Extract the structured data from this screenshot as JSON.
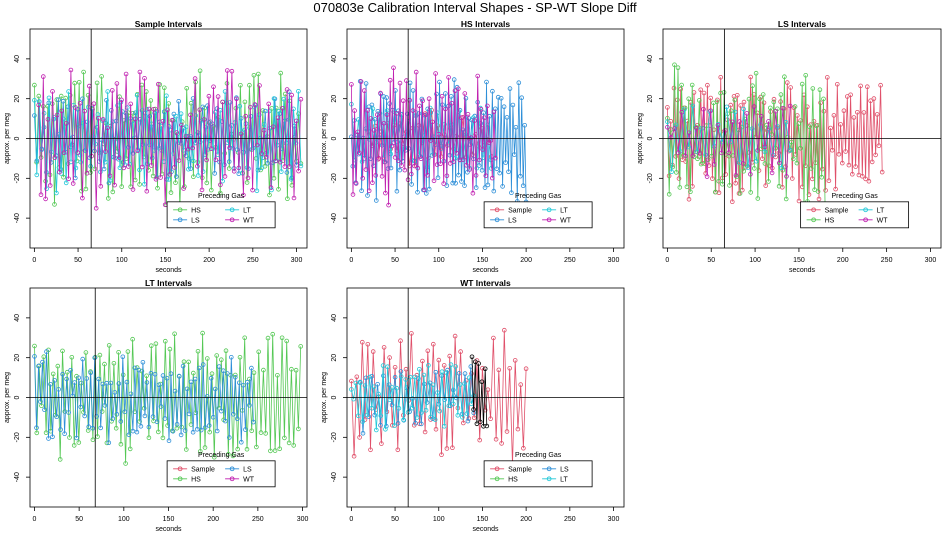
{
  "page_title": "070803e   Calibration Interval Shapes - SP-WT Slope Diff",
  "colors": {
    "Sample": "#e0506a",
    "HS": "#55c855",
    "LS": "#2e8fd8",
    "LT": "#22c8d8",
    "WT": "#c020b0",
    "ref": "#000000"
  },
  "chart_data": [
    {
      "type": "line",
      "title": "Sample Intervals",
      "xlabel": "seconds",
      "ylabel": "approx. per meg",
      "xlim": [
        -5,
        312
      ],
      "ylim": [
        -55,
        55
      ],
      "xticks": [
        0,
        50,
        100,
        150,
        200,
        250,
        300
      ],
      "yticks": [
        -40,
        -20,
        0,
        20,
        40
      ],
      "vline": 65,
      "hline": 0,
      "legend": {
        "title": "Preceding Gas",
        "entries": [
          "HS",
          "LT",
          "LS",
          "WT"
        ]
      },
      "series": [
        {
          "name": "HS",
          "x_start": 0,
          "x_end": 305,
          "n": 120,
          "amp": 25,
          "seed": 11
        },
        {
          "name": "LS",
          "x_start": 0,
          "x_end": 300,
          "n": 110,
          "amp": 15,
          "seed": 12
        },
        {
          "name": "LT",
          "x_start": 0,
          "x_end": 305,
          "n": 110,
          "amp": 18,
          "seed": 13
        },
        {
          "name": "WT",
          "x_start": 5,
          "x_end": 305,
          "n": 115,
          "amp": 22,
          "seed": 14
        }
      ]
    },
    {
      "type": "line",
      "title": "HS Intervals",
      "xlabel": "seconds",
      "ylabel": "approx. per meg",
      "xlim": [
        -5,
        312
      ],
      "ylim": [
        -55,
        55
      ],
      "xticks": [
        0,
        50,
        100,
        150,
        200,
        250,
        300
      ],
      "yticks": [
        -40,
        -20,
        0,
        20,
        40
      ],
      "vline": 65,
      "hline": 0,
      "legend": {
        "title": "Preceding Gas",
        "entries": [
          "Sample",
          "LT",
          "LS",
          "WT"
        ]
      },
      "series": [
        {
          "name": "Sample",
          "x_start": 20,
          "x_end": 160,
          "n": 40,
          "amp": 10,
          "seed": 21
        },
        {
          "name": "LS",
          "x_start": 0,
          "x_end": 200,
          "n": 120,
          "amp": 22,
          "seed": 22
        },
        {
          "name": "LT",
          "x_start": 0,
          "x_end": 160,
          "n": 40,
          "amp": 12,
          "seed": 23
        },
        {
          "name": "WT",
          "x_start": 0,
          "x_end": 165,
          "n": 90,
          "amp": 24,
          "seed": 24
        }
      ]
    },
    {
      "type": "line",
      "title": "LS Intervals",
      "xlabel": "seconds",
      "ylabel": "approx. per meg",
      "xlim": [
        -5,
        312
      ],
      "ylim": [
        -55,
        55
      ],
      "xticks": [
        0,
        50,
        100,
        150,
        200,
        250,
        300
      ],
      "yticks": [
        -40,
        -20,
        0,
        20,
        40
      ],
      "vline": 65,
      "hline": 0,
      "legend": {
        "title": "Preceding Gas",
        "entries": [
          "Sample",
          "LT",
          "HS",
          "WT"
        ]
      },
      "series": [
        {
          "name": "Sample",
          "x_start": 0,
          "x_end": 245,
          "n": 130,
          "amp": 22,
          "seed": 31
        },
        {
          "name": "HS",
          "x_start": 0,
          "x_end": 180,
          "n": 90,
          "amp": 25,
          "seed": 32
        },
        {
          "name": "LT",
          "x_start": 0,
          "x_end": 140,
          "n": 30,
          "amp": 12,
          "seed": 33
        },
        {
          "name": "WT",
          "x_start": 0,
          "x_end": 140,
          "n": 35,
          "amp": 14,
          "seed": 34
        }
      ]
    },
    {
      "type": "line",
      "title": "LT Intervals",
      "xlabel": "seconds",
      "ylabel": "approx. per meg",
      "xlim": [
        -5,
        305
      ],
      "ylim": [
        -55,
        55
      ],
      "xticks": [
        0,
        50,
        100,
        150,
        200,
        250,
        300
      ],
      "yticks": [
        -40,
        -20,
        0,
        20,
        40
      ],
      "vline": 68,
      "hline": 0,
      "legend": {
        "title": "Preceding Gas",
        "entries": [
          "Sample",
          "LS",
          "HS",
          "WT"
        ]
      },
      "series": [
        {
          "name": "HS",
          "x_start": 0,
          "x_end": 298,
          "n": 115,
          "amp": 24,
          "seed": 41
        },
        {
          "name": "LS",
          "x_start": 0,
          "x_end": 245,
          "n": 110,
          "amp": 15,
          "seed": 42
        }
      ]
    },
    {
      "type": "line",
      "title": "WT Intervals",
      "xlabel": "seconds",
      "ylabel": "approx. per meg",
      "xlim": [
        -5,
        312
      ],
      "ylim": [
        -55,
        55
      ],
      "xticks": [
        0,
        50,
        100,
        150,
        200,
        250,
        300
      ],
      "yticks": [
        -40,
        -20,
        0,
        20,
        40
      ],
      "vline": 65,
      "hline": 0,
      "legend": {
        "title": "Preceding Gas",
        "entries": [
          "Sample",
          "LS",
          "HS",
          "LT"
        ]
      },
      "series": [
        {
          "name": "Sample",
          "x_start": 0,
          "x_end": 200,
          "n": 65,
          "amp": 24,
          "seed": 51
        },
        {
          "name": "LS",
          "x_start": 10,
          "x_end": 140,
          "n": 40,
          "amp": 12,
          "seed": 52
        },
        {
          "name": "LT",
          "x_start": 0,
          "x_end": 140,
          "n": 55,
          "amp": 12,
          "seed": 53
        },
        {
          "name": "ref",
          "x_start": 138,
          "x_end": 155,
          "n": 10,
          "amp": 18,
          "seed": 54
        }
      ]
    }
  ]
}
